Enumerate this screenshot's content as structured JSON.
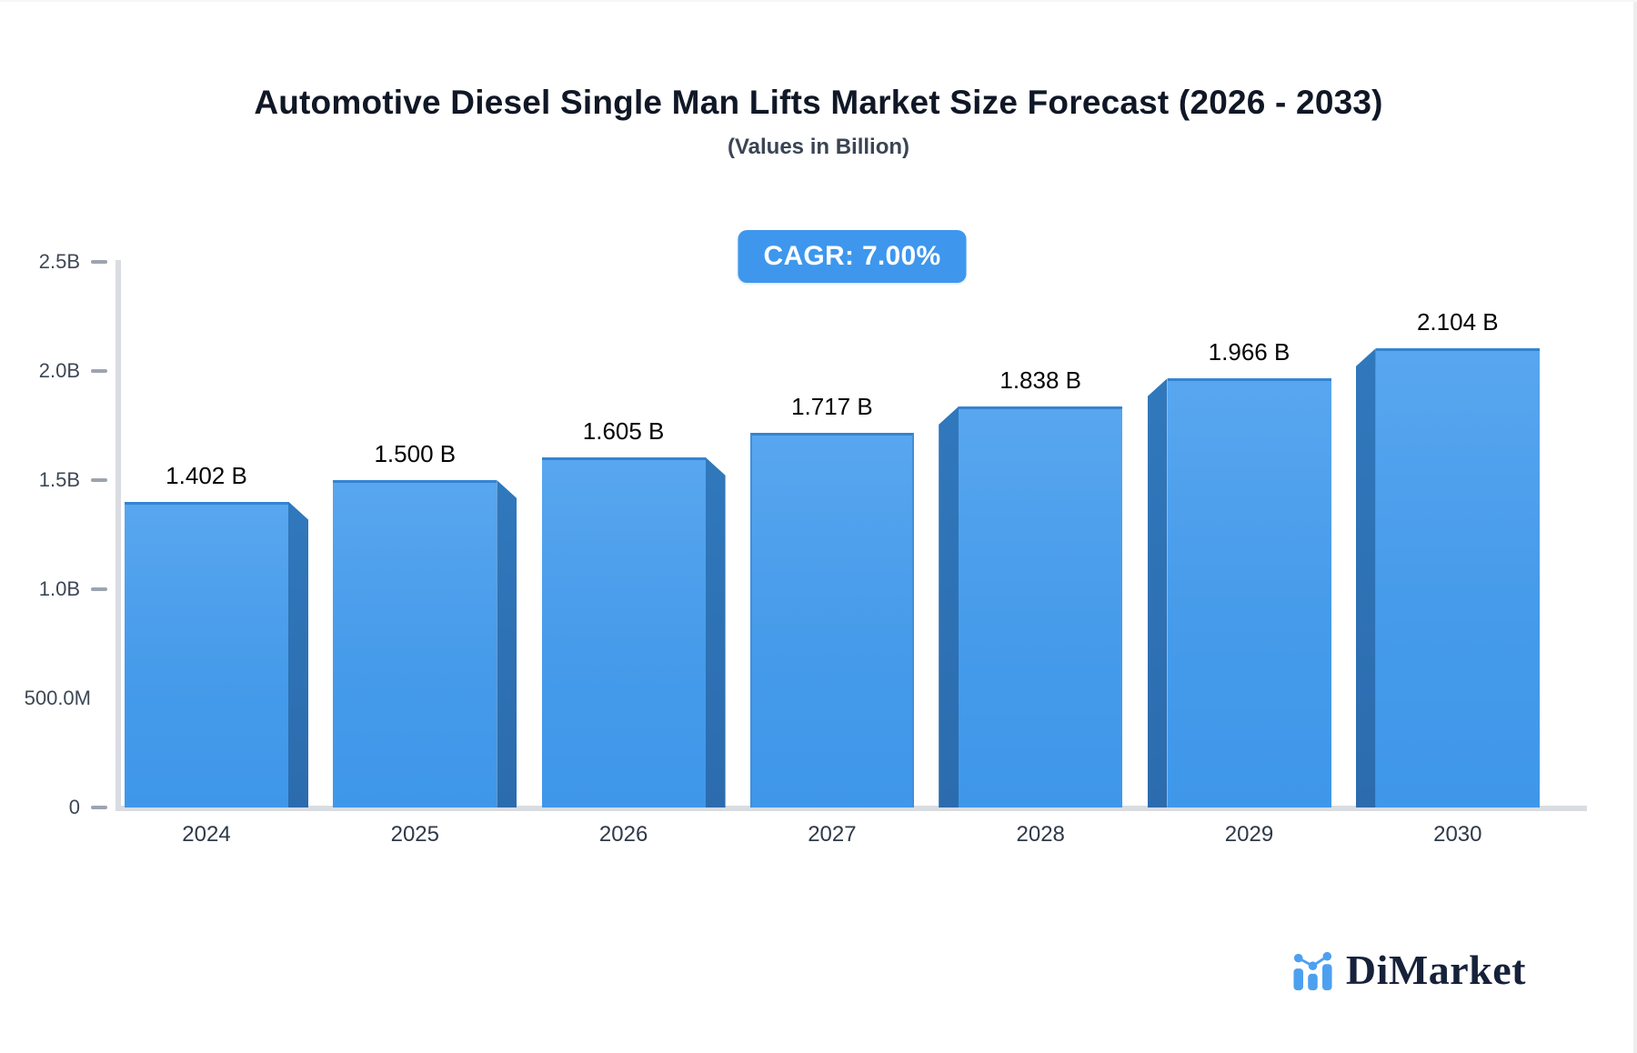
{
  "chart_data": {
    "type": "bar",
    "title": "Automotive Diesel Single Man Lifts Market Size Forecast (2026 - 2033)",
    "subtitle": "(Values in Billion)",
    "cagr_label": "CAGR: 7.00%",
    "categories": [
      "2024",
      "2025",
      "2026",
      "2027",
      "2028",
      "2029",
      "2030"
    ],
    "values": [
      1.402,
      1.5,
      1.605,
      1.717,
      1.838,
      1.966,
      2.104
    ],
    "value_labels": [
      "1.402 B",
      "1.500 B",
      "1.605 B",
      "1.717 B",
      "1.838 B",
      "1.966 B",
      "2.104 B"
    ],
    "xlabel": "",
    "ylabel": "",
    "ylim": [
      0,
      2.5
    ],
    "y_axis": {
      "ticks": [
        {
          "label": "2.5B",
          "value": 2.5,
          "dash": true
        },
        {
          "label": "2.0B",
          "value": 2.0,
          "dash": true
        },
        {
          "label": "1.5B",
          "value": 1.5,
          "dash": true
        },
        {
          "label": "1.0B",
          "value": 1.0,
          "dash": true
        },
        {
          "label": "500.0M",
          "value": 0.5,
          "dash": false
        },
        {
          "label": "0",
          "value": 0,
          "dash": true
        }
      ]
    },
    "legend": "none",
    "grid": "off",
    "colors": {
      "bar_face_top": "#58a6ef",
      "bar_face_bottom": "#3f97ea",
      "bar_side": "#2e72b5",
      "bar_top_edge": "#3484d2",
      "axis": "#d9dce1",
      "badge": "#3e97ed",
      "logo_blue": "#4da0ef",
      "logo_navy": "#16213a"
    }
  },
  "logo": {
    "text": "DiMarket"
  }
}
